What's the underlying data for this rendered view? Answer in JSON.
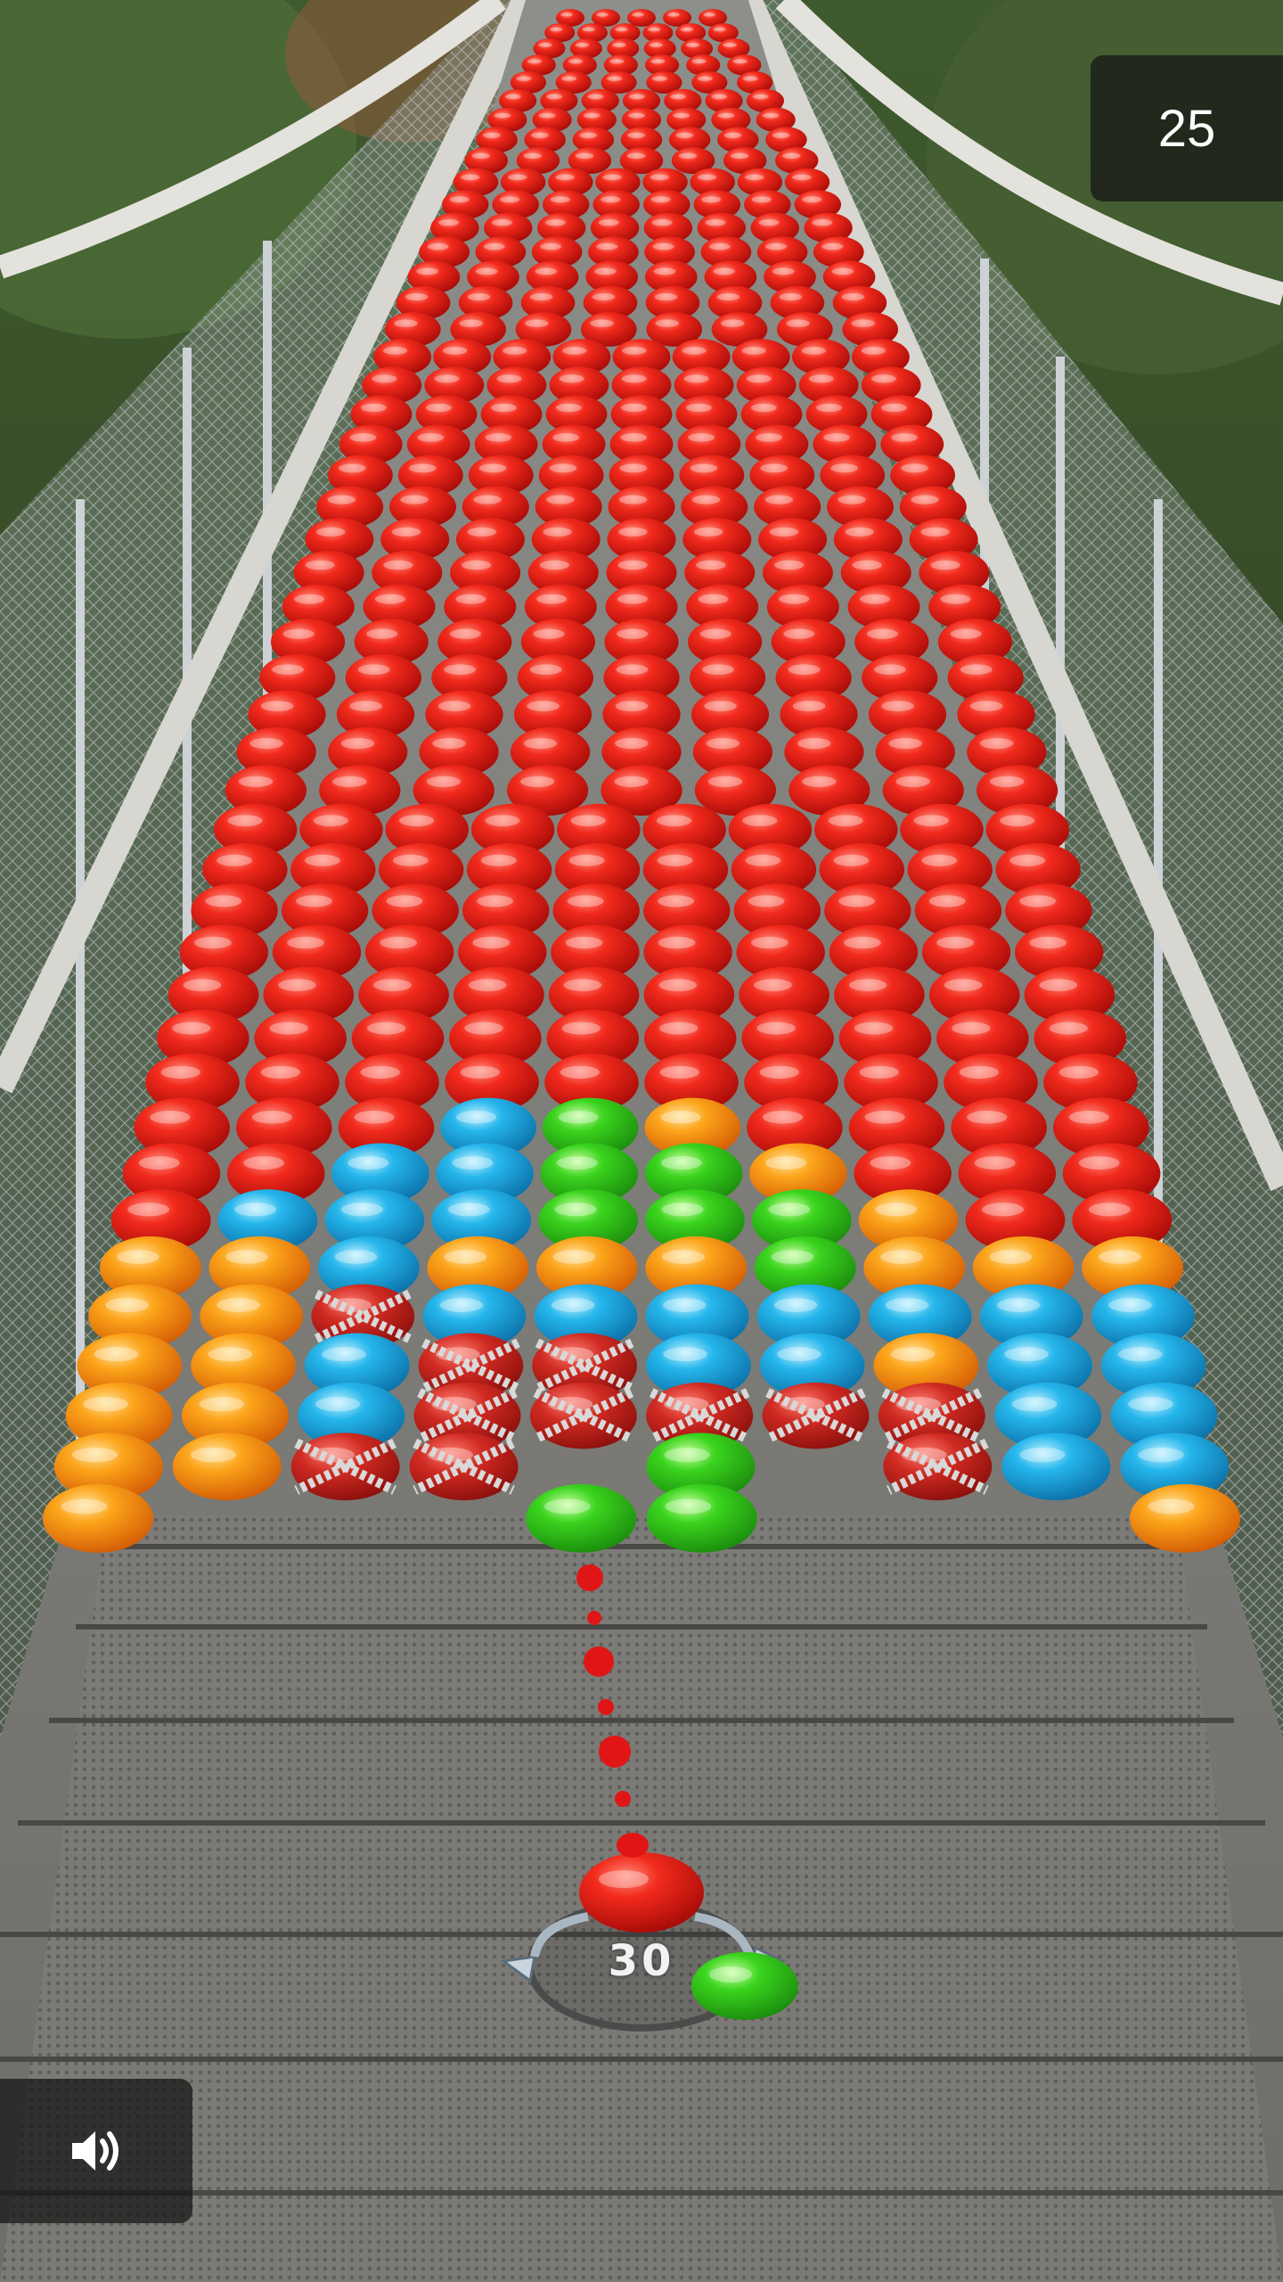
{
  "hud": {
    "score": "25",
    "shots_left": "30"
  },
  "shooter": {
    "current_ball_color": "red",
    "next_ball_color": "green"
  },
  "colors": {
    "red": "#e01616",
    "green": "#2ecf1c",
    "blue": "#21aee6",
    "orange": "#f99a10",
    "chained": "#c0282a"
  },
  "icons": {
    "sound": "speaker-icon",
    "swap": "swap-arrows-icon"
  }
}
